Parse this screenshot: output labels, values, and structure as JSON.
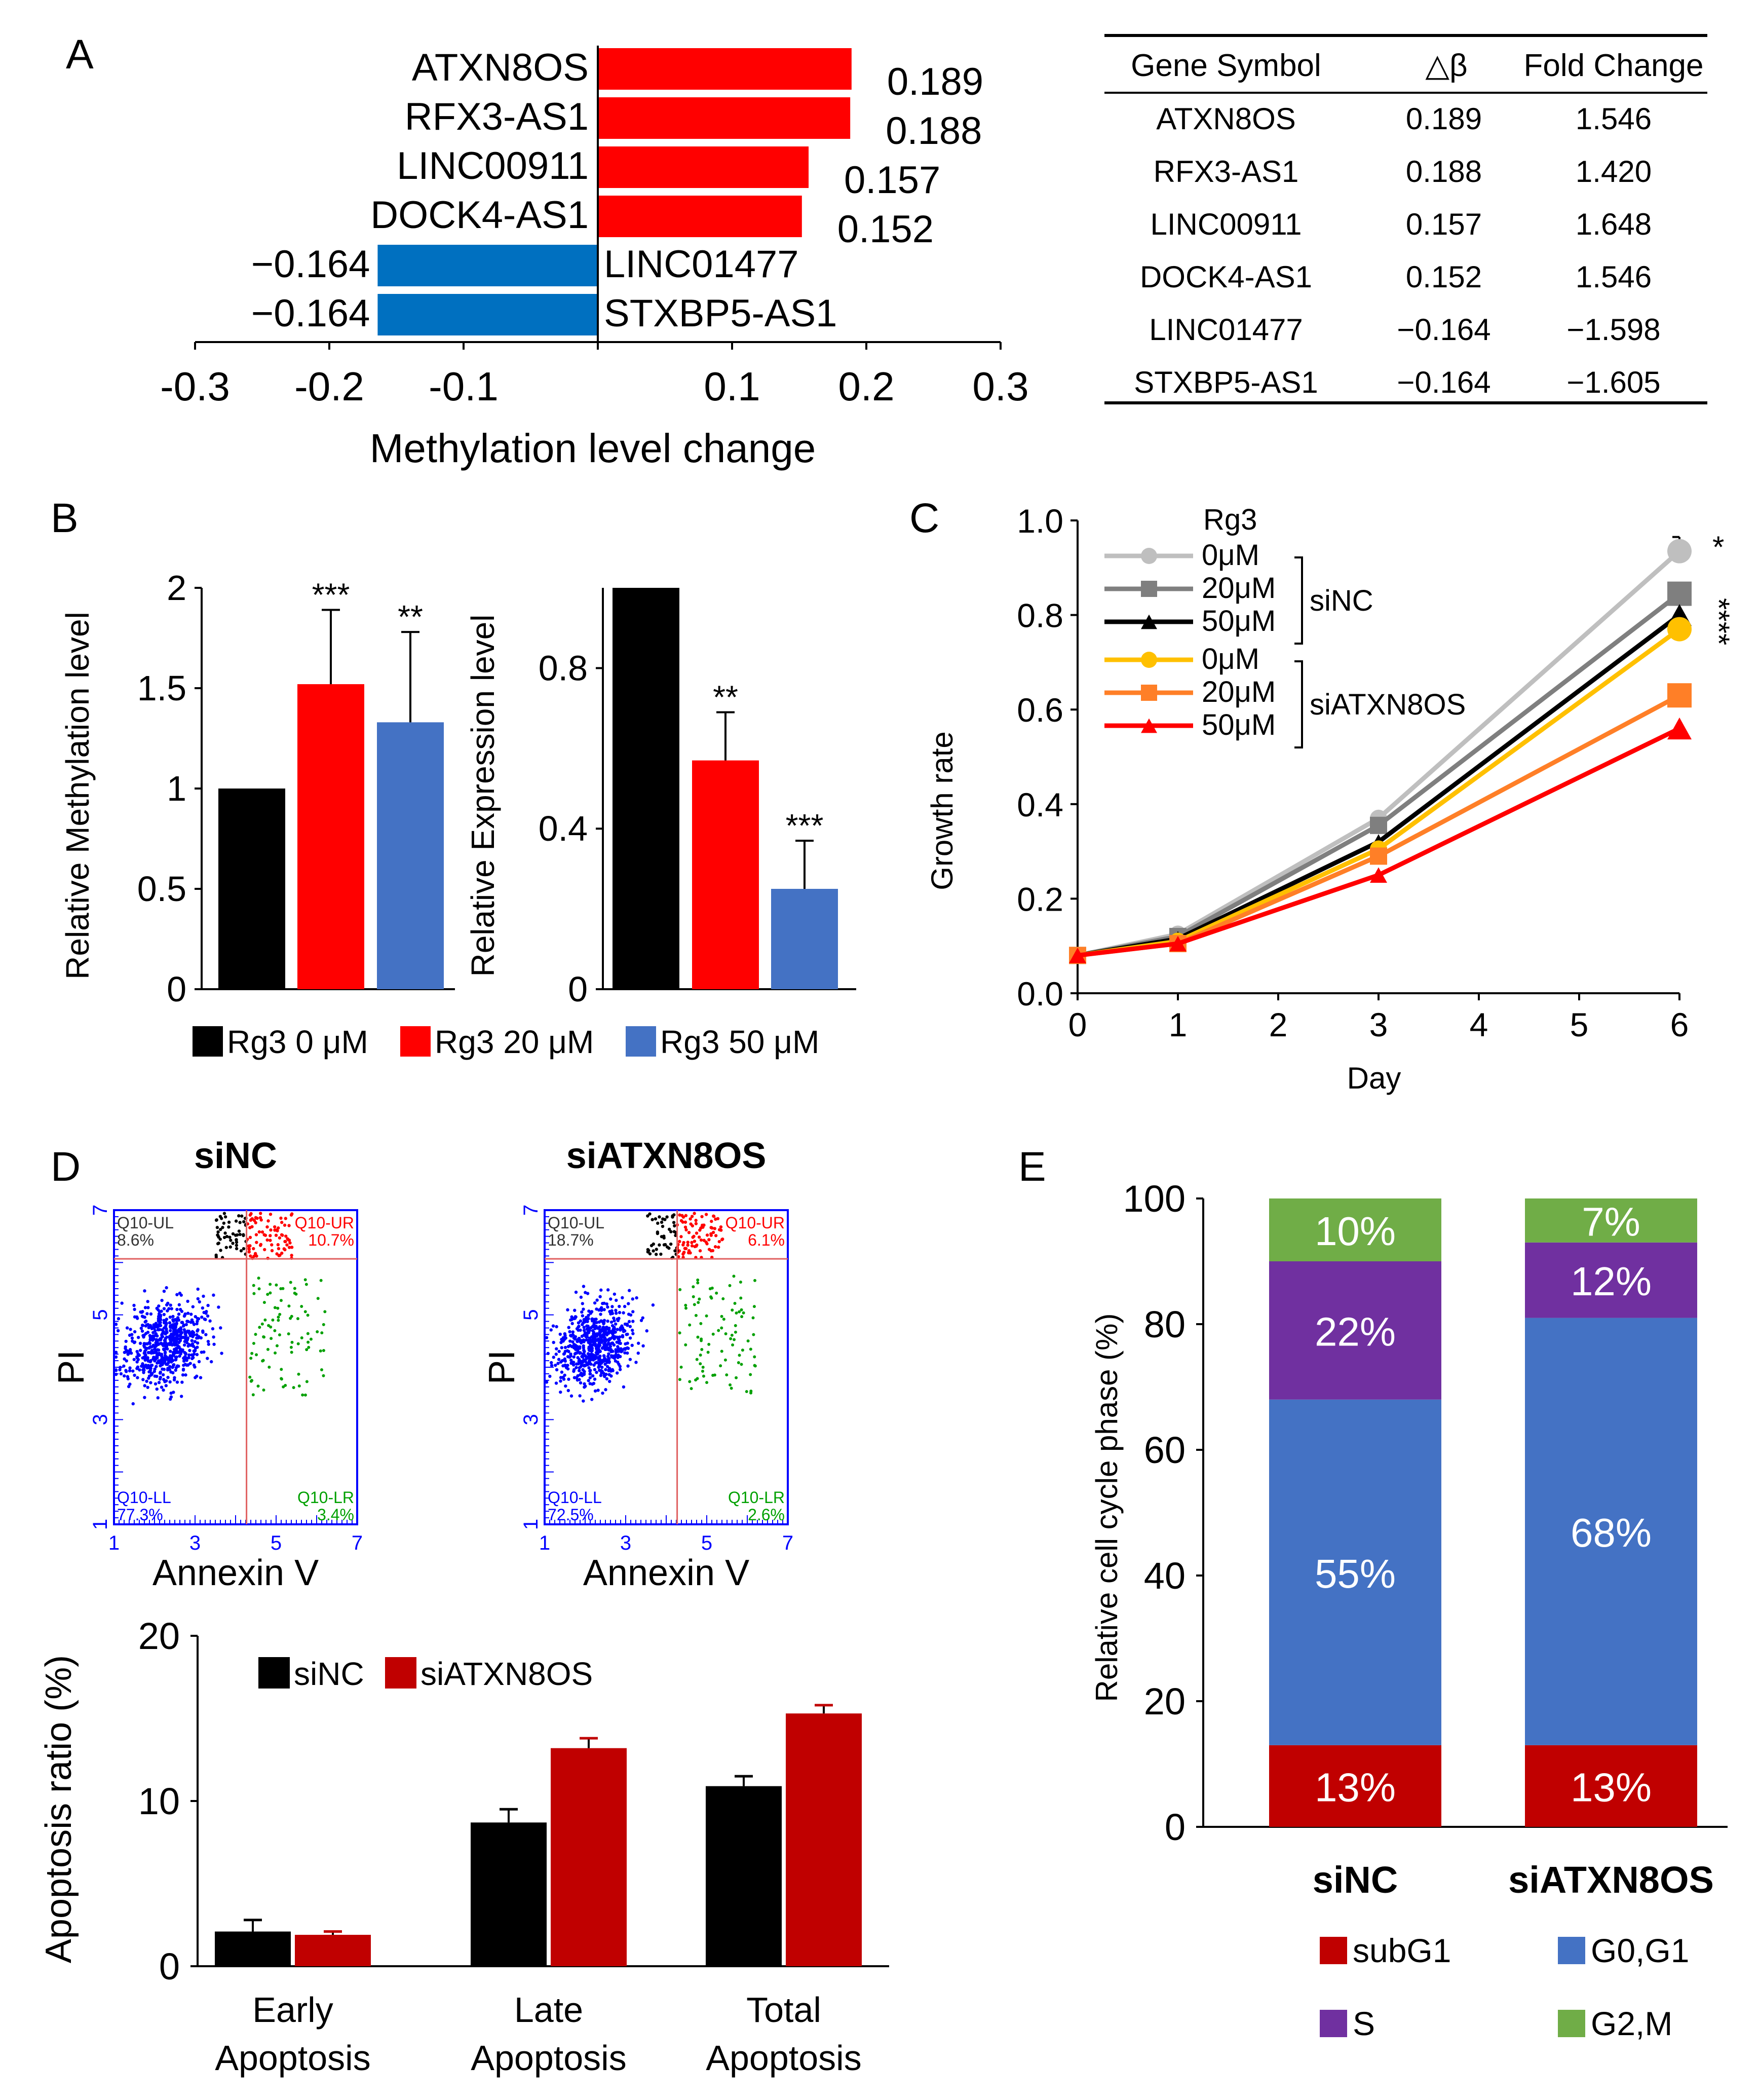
{
  "colors": {
    "red": "#ff0000",
    "blue": "#0070c0",
    "black": "#000000",
    "panel_b_blue": "#4472c4",
    "darkred": "#c00000",
    "purple": "#7030a0",
    "green": "#70ad47",
    "cell_blue": "#4472c4",
    "light_gray": "#bfbfbf",
    "gray": "#7f7f7f",
    "yellow": "#ffc000",
    "orange": "#ff7f27",
    "flow_blue": "#0000ff",
    "flow_green": "#00a000",
    "flow_gate": "#e06060"
  },
  "panel_labels": {
    "a": "A",
    "b": "B",
    "c": "C",
    "d": "D",
    "e": "E"
  },
  "chart_data": [
    {
      "id": "A",
      "type": "bar",
      "orientation": "horizontal",
      "categories": [
        "ATXN8OS",
        "RFX3-AS1",
        "LINC00911",
        "DOCK4-AS1",
        "LINC01477",
        "STXBP5-AS1"
      ],
      "values": [
        0.189,
        0.188,
        0.157,
        0.152,
        -0.164,
        -0.164
      ],
      "value_labels": [
        "0.189",
        "0.188",
        "0.157",
        "0.152",
        "−0.164",
        "−0.164"
      ],
      "xlabel": "Methylation level change",
      "xlim": [
        -0.3,
        0.3
      ],
      "xticks": [
        "-0.3",
        "-0.2",
        "-0.1",
        "0.1",
        "0.2",
        "0.3"
      ],
      "table": {
        "headers": [
          "Gene Symbol",
          "△β",
          "Fold Change"
        ],
        "rows": [
          [
            "ATXN8OS",
            "0.189",
            "1.546"
          ],
          [
            "RFX3-AS1",
            "0.188",
            "1.420"
          ],
          [
            "LINC00911",
            "0.157",
            "1.648"
          ],
          [
            "DOCK4-AS1",
            "0.152",
            "1.546"
          ],
          [
            "LINC01477",
            "−0.164",
            "−1.598"
          ],
          [
            "STXBP5-AS1",
            "−0.164",
            "−1.605"
          ]
        ]
      }
    },
    {
      "id": "B-methylation",
      "type": "bar",
      "categories": [
        "Rg3 0 μM",
        "Rg3 20 μM",
        "Rg3 50 μM"
      ],
      "values": [
        1.0,
        1.52,
        1.33
      ],
      "errors": [
        0.0,
        0.37,
        0.45
      ],
      "significance": [
        "",
        "***",
        "**"
      ],
      "ylabel": "Relative  Methylation  level",
      "ylim": [
        0,
        2
      ],
      "yticks": [
        "0",
        "0.5",
        "1",
        "1.5",
        "2"
      ]
    },
    {
      "id": "B-expression",
      "type": "bar",
      "categories": [
        "Rg3 0 μM",
        "Rg3 20 μM",
        "Rg3 50 μM"
      ],
      "values": [
        1.0,
        0.57,
        0.25
      ],
      "errors": [
        0.0,
        0.12,
        0.12
      ],
      "significance": [
        "",
        "**",
        "***"
      ],
      "ylabel": "Relative  Expression  level",
      "ylim": [
        0,
        1
      ],
      "yticks": [
        "0",
        "0.4",
        "0.8"
      ],
      "legend": [
        "Rg3  0  μM",
        "Rg3  20  μM",
        "Rg3  50  μM"
      ]
    },
    {
      "id": "C",
      "type": "line",
      "x": [
        0,
        1,
        3,
        6
      ],
      "xlabel": "Day",
      "ylabel": "Growth  rate",
      "xlim": [
        0,
        6
      ],
      "ylim": [
        0,
        1.0
      ],
      "xticks": [
        "0",
        "1",
        "2",
        "3",
        "4",
        "5",
        "6"
      ],
      "yticks": [
        "0.0",
        "0.2",
        "0.4",
        "0.6",
        "0.8",
        "1.0"
      ],
      "legend_title": "Rg3",
      "group_labels": [
        "siNC",
        "siATXN8OS"
      ],
      "significance": [
        "*",
        "****"
      ],
      "series": [
        {
          "name": "0μM",
          "group": "siNC",
          "marker": "circle",
          "values": [
            0.08,
            0.125,
            0.37,
            0.935
          ]
        },
        {
          "name": "20μM",
          "group": "siNC",
          "marker": "square",
          "values": [
            0.08,
            0.12,
            0.355,
            0.845
          ]
        },
        {
          "name": "50μM",
          "group": "siNC",
          "marker": "triangle",
          "values": [
            0.08,
            0.115,
            0.32,
            0.8
          ]
        },
        {
          "name": "0μM",
          "group": "siATXN8OS",
          "marker": "circle",
          "values": [
            0.08,
            0.11,
            0.305,
            0.77
          ]
        },
        {
          "name": "20μM",
          "group": "siATXN8OS",
          "marker": "square",
          "values": [
            0.08,
            0.105,
            0.29,
            0.63
          ]
        },
        {
          "name": "50μM",
          "group": "siATXN8OS",
          "marker": "triangle",
          "values": [
            0.08,
            0.105,
            0.25,
            0.56
          ]
        }
      ]
    },
    {
      "id": "D-flow",
      "type": "scatter",
      "plots": [
        {
          "title": "siNC",
          "UL": "Q10-UL",
          "UL_val": "8.6%",
          "UR": "Q10-UR",
          "UR_val": "10.7%",
          "LL": "Q10-LL",
          "LL_val": "77.3%",
          "LR": "Q10-LR",
          "LR_val": "3.4%"
        },
        {
          "title": "siATXN8OS",
          "UL": "Q10-UL",
          "UL_val": "18.7%",
          "UR": "Q10-UR",
          "UR_val": "6.1%",
          "LL": "Q10-LL",
          "LL_val": "72.5%",
          "LR": "Q10-LR",
          "LR_val": "2.6%"
        }
      ],
      "xlabel": "Annexin V",
      "ylabel": "PI",
      "axis_ticks": [
        "1",
        "3",
        "5",
        "7"
      ]
    },
    {
      "id": "D-apoptosis",
      "type": "bar",
      "categories": [
        [
          "Early",
          "Apoptosis"
        ],
        [
          "Late",
          "Apoptosis"
        ],
        [
          "Total",
          "Apoptosis"
        ]
      ],
      "series": [
        {
          "name": "siNC",
          "values": [
            2.1,
            8.7,
            10.9
          ],
          "errors": [
            0.7,
            0.8,
            0.6
          ]
        },
        {
          "name": "siATXN8OS",
          "values": [
            1.9,
            13.2,
            15.3
          ],
          "errors": [
            0.2,
            0.6,
            0.5
          ]
        }
      ],
      "ylabel": "Apoptosis ratio (%)",
      "ylim": [
        0,
        20
      ],
      "yticks": [
        "0",
        "10",
        "20"
      ]
    },
    {
      "id": "E",
      "type": "bar",
      "stacked": true,
      "categories": [
        "siNC",
        "siATXN8OS"
      ],
      "series": [
        {
          "name": "subG1",
          "values": [
            13,
            13
          ],
          "labels": [
            "13%",
            "13%"
          ]
        },
        {
          "name": "G0,G1",
          "values": [
            55,
            68
          ],
          "labels": [
            "55%",
            "68%"
          ]
        },
        {
          "name": "S",
          "values": [
            22,
            12
          ],
          "labels": [
            "22%",
            "12%"
          ]
        },
        {
          "name": "G2,M",
          "values": [
            10,
            7
          ],
          "labels": [
            "10%",
            "7%"
          ]
        }
      ],
      "ylabel": "Relative  cell  cycle phase  (%)",
      "ylim": [
        0,
        100
      ],
      "yticks": [
        "0",
        "20",
        "40",
        "60",
        "80",
        "100"
      ]
    }
  ]
}
